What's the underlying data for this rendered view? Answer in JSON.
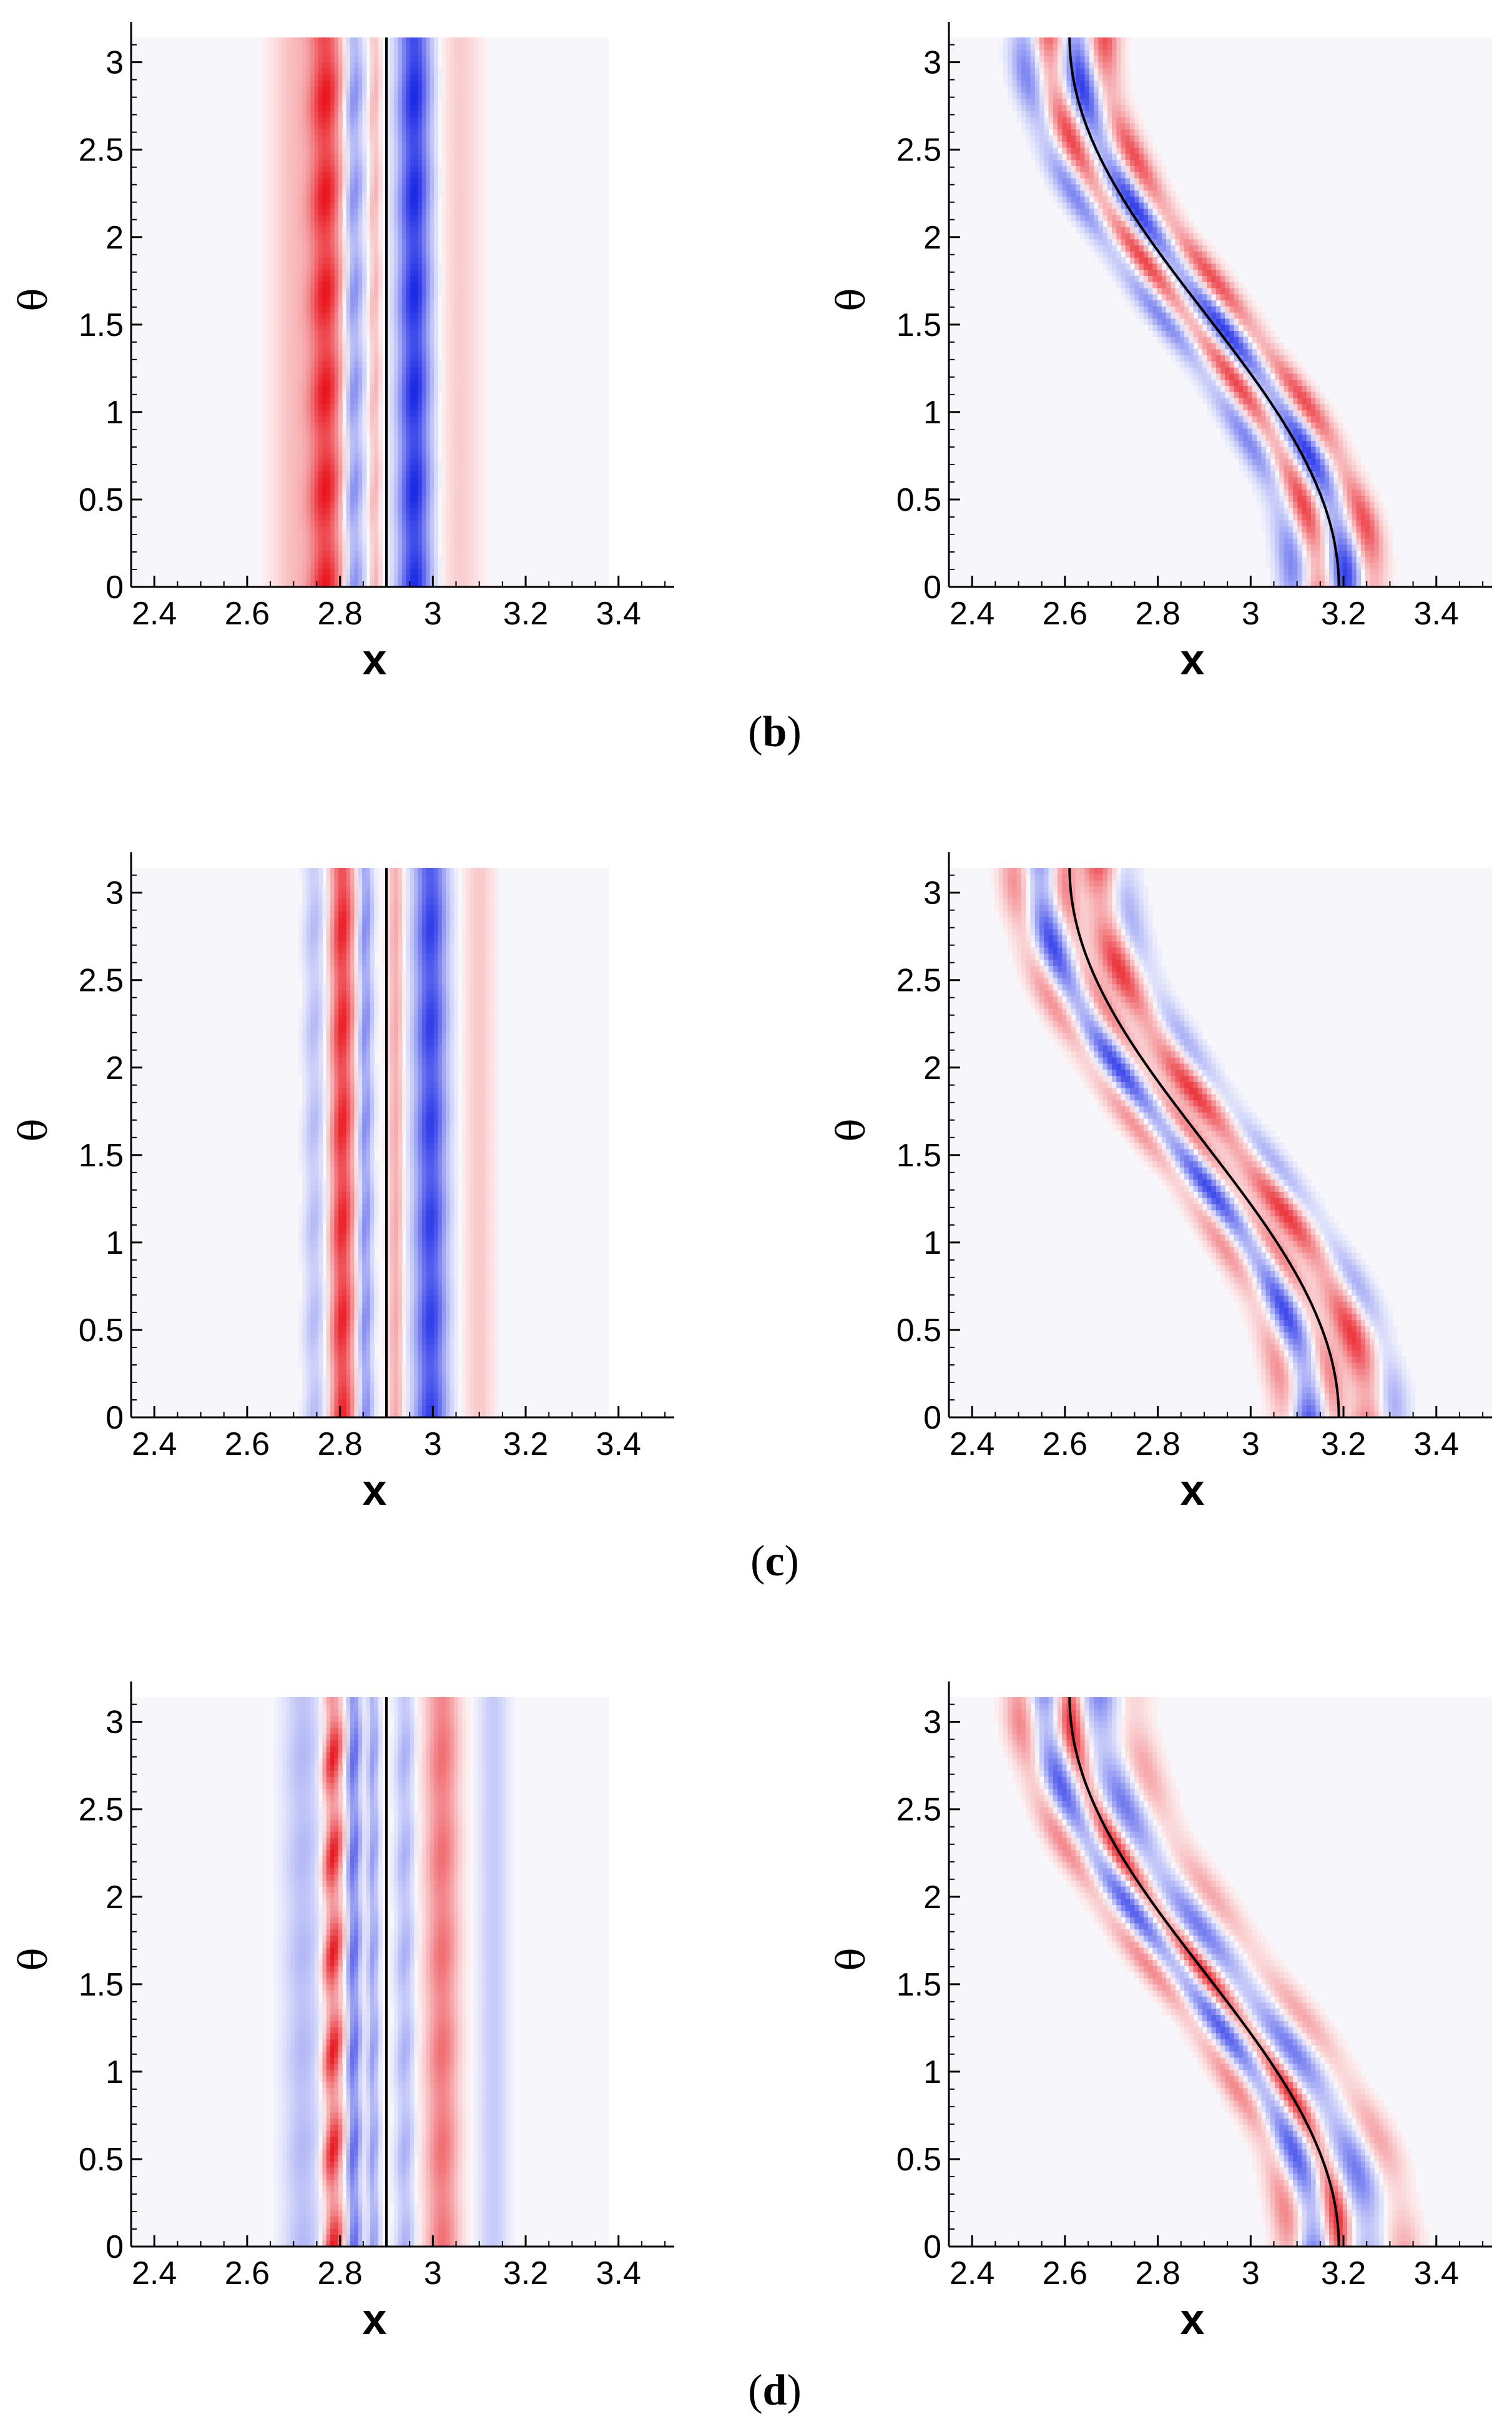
{
  "figure": {
    "captions": [
      {
        "open": "(",
        "letter": "b",
        "close": ")"
      },
      {
        "open": "(",
        "letter": "c",
        "close": ")"
      },
      {
        "open": "(",
        "letter": "d",
        "close": ")"
      }
    ]
  },
  "colors": {
    "positive": "#e8141c",
    "negative": "#1a28e6",
    "curve": "#000000",
    "axis": "#000000"
  },
  "chart_data": [
    {
      "type": "heatmap",
      "panel": "b-left",
      "xlabel": "x",
      "ylabel": "θ",
      "xlim": [
        2.35,
        3.52
      ],
      "ylim": [
        0,
        3.14159
      ],
      "x_ticks": [
        2.4,
        2.6,
        2.8,
        3,
        3.2,
        3.4
      ],
      "x_tick_labels": [
        "2.4",
        "2.6",
        "2.8",
        "3",
        "3.2",
        "3.4"
      ],
      "y_ticks": [
        0,
        0.5,
        1,
        1.5,
        2,
        2.5,
        3
      ],
      "y_tick_labels": [
        "0",
        "0.5",
        "1",
        "1.5",
        "2",
        "2.5",
        "3"
      ],
      "field_extent_x": [
        2.35,
        3.38
      ],
      "reference_line_x": 2.9,
      "curve": null,
      "bands": [
        {
          "x": 2.705,
          "width": 0.05,
          "sign": 1,
          "amp": 0.25,
          "wave": 0
        },
        {
          "x": 2.77,
          "width": 0.035,
          "sign": 1,
          "amp": 0.95,
          "wave": 0.45
        },
        {
          "x": 2.83,
          "width": 0.02,
          "sign": -1,
          "amp": 0.55,
          "wave": 0.7
        },
        {
          "x": 2.875,
          "width": 0.012,
          "sign": 1,
          "amp": 0.3,
          "wave": 0.5
        },
        {
          "x": 2.96,
          "width": 0.035,
          "sign": -1,
          "amp": 1.0,
          "wave": 0.3
        },
        {
          "x": 3.06,
          "width": 0.04,
          "sign": 1,
          "amp": 0.18,
          "wave": 0
        }
      ]
    },
    {
      "type": "heatmap",
      "panel": "b-right",
      "xlabel": "x",
      "ylabel": "θ",
      "xlim": [
        2.35,
        3.52
      ],
      "ylim": [
        0,
        3.14159
      ],
      "x_ticks": [
        2.4,
        2.6,
        2.8,
        3,
        3.2,
        3.4
      ],
      "x_tick_labels": [
        "2.4",
        "2.6",
        "2.8",
        "3",
        "3.2",
        "3.4"
      ],
      "y_ticks": [
        0,
        0.5,
        1,
        1.5,
        2,
        2.5,
        3
      ],
      "y_tick_labels": [
        "0",
        "0.5",
        "1",
        "1.5",
        "2",
        "2.5",
        "3"
      ],
      "field_extent_x": [
        2.35,
        3.52
      ],
      "reference_line_x": null,
      "curve": {
        "x_at_theta0": 3.19,
        "x_at_theta_pi": 2.61
      },
      "bands": [
        {
          "offset": -0.1,
          "width": 0.03,
          "sign": -1,
          "amp": 0.55
        },
        {
          "offset": -0.045,
          "width": 0.028,
          "sign": 1,
          "amp": 0.8
        },
        {
          "offset": 0.015,
          "width": 0.03,
          "sign": -1,
          "amp": 0.9
        },
        {
          "offset": 0.075,
          "width": 0.03,
          "sign": 1,
          "amp": 0.75
        }
      ]
    },
    {
      "type": "heatmap",
      "panel": "c-left",
      "xlabel": "x",
      "ylabel": "θ",
      "xlim": [
        2.35,
        3.52
      ],
      "ylim": [
        0,
        3.14159
      ],
      "x_ticks": [
        2.4,
        2.6,
        2.8,
        3,
        3.2,
        3.4
      ],
      "x_tick_labels": [
        "2.4",
        "2.6",
        "2.8",
        "3",
        "3.2",
        "3.4"
      ],
      "y_ticks": [
        0,
        0.5,
        1,
        1.5,
        2,
        2.5,
        3
      ],
      "y_tick_labels": [
        "0",
        "0.5",
        "1",
        "1.5",
        "2",
        "2.5",
        "3"
      ],
      "field_extent_x": [
        2.35,
        3.38
      ],
      "reference_line_x": 2.9,
      "curve": null,
      "bands": [
        {
          "x": 2.745,
          "width": 0.022,
          "sign": -1,
          "amp": 0.3,
          "wave": 0.6
        },
        {
          "x": 2.805,
          "width": 0.025,
          "sign": 1,
          "amp": 0.95,
          "wave": 0.4
        },
        {
          "x": 2.855,
          "width": 0.015,
          "sign": -1,
          "amp": 0.55,
          "wave": 0.5
        },
        {
          "x": 2.92,
          "width": 0.016,
          "sign": 1,
          "amp": 0.35,
          "wave": 0.2
        },
        {
          "x": 2.995,
          "width": 0.035,
          "sign": -1,
          "amp": 0.9,
          "wave": 0.3
        },
        {
          "x": 3.1,
          "width": 0.03,
          "sign": 1,
          "amp": 0.2,
          "wave": 0
        }
      ]
    },
    {
      "type": "heatmap",
      "panel": "c-right",
      "xlabel": "x",
      "ylabel": "θ",
      "xlim": [
        2.35,
        3.52
      ],
      "ylim": [
        0,
        3.14159
      ],
      "x_ticks": [
        2.4,
        2.6,
        2.8,
        3,
        3.2,
        3.4
      ],
      "x_tick_labels": [
        "2.4",
        "2.6",
        "2.8",
        "3",
        "3.2",
        "3.4"
      ],
      "y_ticks": [
        0,
        0.5,
        1,
        1.5,
        2,
        2.5,
        3
      ],
      "y_tick_labels": [
        "0",
        "0.5",
        "1",
        "1.5",
        "2",
        "2.5",
        "3"
      ],
      "field_extent_x": [
        2.35,
        3.52
      ],
      "reference_line_x": null,
      "curve": {
        "x_at_theta0": 3.19,
        "x_at_theta_pi": 2.61
      },
      "bands": [
        {
          "offset": -0.12,
          "width": 0.03,
          "sign": 1,
          "amp": 0.45
        },
        {
          "offset": -0.065,
          "width": 0.03,
          "sign": -1,
          "amp": 0.85
        },
        {
          "offset": -0.01,
          "width": 0.025,
          "sign": 1,
          "amp": 0.5
        },
        {
          "offset": 0.06,
          "width": 0.035,
          "sign": 1,
          "amp": 0.85
        },
        {
          "offset": 0.12,
          "width": 0.03,
          "sign": -1,
          "amp": 0.35
        }
      ]
    },
    {
      "type": "heatmap",
      "panel": "d-left",
      "xlabel": "x",
      "ylabel": "θ",
      "xlim": [
        2.35,
        3.52
      ],
      "ylim": [
        0,
        3.14159
      ],
      "x_ticks": [
        2.4,
        2.6,
        2.8,
        3,
        3.2,
        3.4
      ],
      "x_tick_labels": [
        "2.4",
        "2.6",
        "2.8",
        "3",
        "3.2",
        "3.4"
      ],
      "y_ticks": [
        0,
        0.5,
        1,
        1.5,
        2,
        2.5,
        3
      ],
      "y_tick_labels": [
        "0",
        "0.5",
        "1",
        "1.5",
        "2",
        "2.5",
        "3"
      ],
      "field_extent_x": [
        2.35,
        3.38
      ],
      "reference_line_x": 2.9,
      "curve": null,
      "bands": [
        {
          "x": 2.72,
          "width": 0.04,
          "sign": -1,
          "amp": 0.3,
          "wave": 0.3
        },
        {
          "x": 2.785,
          "width": 0.02,
          "sign": 1,
          "amp": 1.0,
          "wave": 1.0
        },
        {
          "x": 2.83,
          "width": 0.015,
          "sign": -1,
          "amp": 0.7,
          "wave": 0.6
        },
        {
          "x": 2.872,
          "width": 0.012,
          "sign": -1,
          "amp": 0.45,
          "wave": 0.5
        },
        {
          "x": 2.94,
          "width": 0.02,
          "sign": -1,
          "amp": 0.35,
          "wave": 0.6
        },
        {
          "x": 3.02,
          "width": 0.035,
          "sign": 1,
          "amp": 0.6,
          "wave": 0.3
        },
        {
          "x": 3.13,
          "width": 0.03,
          "sign": -1,
          "amp": 0.22,
          "wave": 0
        }
      ]
    },
    {
      "type": "heatmap",
      "panel": "d-right",
      "xlabel": "x",
      "ylabel": "θ",
      "xlim": [
        2.35,
        3.52
      ],
      "ylim": [
        0,
        3.14159
      ],
      "x_ticks": [
        2.4,
        2.6,
        2.8,
        3,
        3.2,
        3.4
      ],
      "x_tick_labels": [
        "2.4",
        "2.6",
        "2.8",
        "3",
        "3.2",
        "3.4"
      ],
      "y_ticks": [
        0,
        0.5,
        1,
        1.5,
        2,
        2.5,
        3
      ],
      "y_tick_labels": [
        "0",
        "0.5",
        "1",
        "1.5",
        "2",
        "2.5",
        "3"
      ],
      "field_extent_x": [
        2.35,
        3.52
      ],
      "reference_line_x": null,
      "curve": {
        "x_at_theta0": 3.19,
        "x_at_theta_pi": 2.61
      },
      "bands": [
        {
          "offset": -0.11,
          "width": 0.03,
          "sign": 1,
          "amp": 0.5
        },
        {
          "offset": -0.055,
          "width": 0.03,
          "sign": -1,
          "amp": 0.75
        },
        {
          "offset": 0.0,
          "width": 0.025,
          "sign": 1,
          "amp": 0.9
        },
        {
          "offset": 0.065,
          "width": 0.035,
          "sign": -1,
          "amp": 0.6
        },
        {
          "offset": 0.14,
          "width": 0.035,
          "sign": 1,
          "amp": 0.35
        }
      ]
    }
  ]
}
